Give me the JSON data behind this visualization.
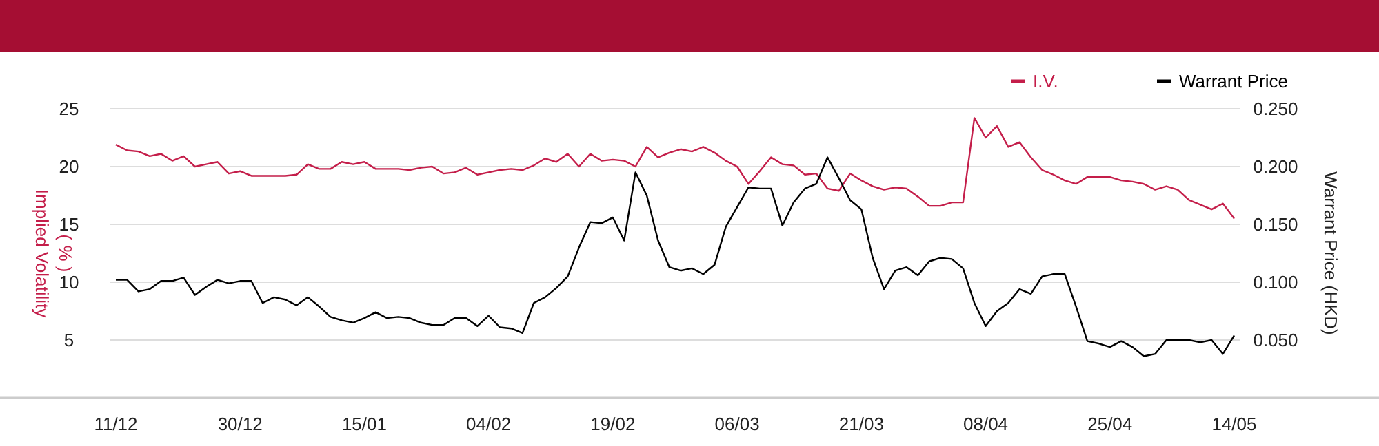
{
  "chart_data": {
    "type": "line",
    "ylabel": "Implied Volatility ( % )",
    "y2label": "Warrant Price (HKD)",
    "categories": [
      "11/12",
      null,
      null,
      null,
      null,
      null,
      null,
      null,
      null,
      null,
      null,
      "30/12",
      null,
      null,
      null,
      null,
      null,
      null,
      null,
      null,
      null,
      null,
      "15/01",
      null,
      null,
      null,
      null,
      null,
      null,
      null,
      null,
      null,
      null,
      "04/02",
      null,
      null,
      null,
      null,
      null,
      null,
      null,
      null,
      null,
      null,
      "19/02",
      null,
      null,
      null,
      null,
      null,
      null,
      null,
      null,
      null,
      null,
      "06/03",
      null,
      null,
      null,
      null,
      null,
      null,
      null,
      null,
      null,
      null,
      "21/03",
      null,
      null,
      null,
      null,
      null,
      null,
      null,
      null,
      null,
      null,
      "08/04",
      null,
      null,
      null,
      null,
      null,
      null,
      null,
      null,
      null,
      null,
      "25/04",
      null,
      null,
      null,
      null,
      null,
      null,
      null,
      null,
      null,
      null,
      "14/05"
    ],
    "series": [
      {
        "name": "I.V.",
        "color": "#c41e4a",
        "values": [
          21.9,
          21.4,
          21.3,
          20.9,
          21.1,
          20.5,
          20.9,
          20.0,
          20.2,
          20.4,
          19.4,
          19.6,
          19.2,
          19.2,
          19.2,
          19.2,
          19.3,
          20.2,
          19.8,
          19.8,
          20.4,
          20.2,
          20.4,
          19.8,
          19.8,
          19.8,
          19.7,
          19.9,
          20.0,
          19.4,
          19.5,
          19.9,
          19.3,
          19.5,
          19.7,
          19.8,
          19.7,
          20.1,
          20.7,
          20.4,
          21.1,
          20.0,
          21.1,
          20.5,
          20.6,
          20.5,
          20.0,
          21.7,
          20.8,
          21.2,
          21.5,
          21.3,
          21.7,
          21.2,
          20.5,
          20.0,
          18.5,
          19.6,
          20.8,
          20.2,
          20.1,
          19.3,
          19.4,
          18.1,
          17.9,
          19.4,
          18.8,
          18.3,
          18.0,
          18.2,
          18.1,
          17.4,
          16.6,
          16.6,
          16.9,
          16.9,
          24.2,
          22.5,
          23.5,
          21.7,
          22.1,
          20.8,
          19.7,
          19.3,
          18.8,
          18.5,
          19.1,
          19.1,
          19.1,
          18.8,
          18.7,
          18.5,
          18.0,
          18.3,
          18.0,
          17.1,
          16.7,
          16.3,
          16.8,
          15.5
        ]
      },
      {
        "name": "Warrant Price",
        "color": "#000000",
        "axis": "y2",
        "values": [
          0.102,
          0.102,
          0.092,
          0.094,
          0.101,
          0.101,
          0.104,
          0.089,
          0.096,
          0.102,
          0.099,
          0.101,
          0.101,
          0.082,
          0.087,
          0.085,
          0.08,
          0.087,
          0.079,
          0.07,
          0.067,
          0.065,
          0.069,
          0.074,
          0.069,
          0.07,
          0.069,
          0.065,
          0.063,
          0.063,
          0.069,
          0.069,
          0.062,
          0.071,
          0.061,
          0.06,
          0.056,
          0.082,
          0.087,
          0.095,
          0.105,
          0.13,
          0.152,
          0.151,
          0.156,
          0.136,
          0.195,
          0.175,
          0.136,
          0.113,
          0.11,
          0.112,
          0.107,
          0.115,
          0.148,
          0.165,
          0.182,
          0.181,
          0.181,
          0.149,
          0.169,
          0.181,
          0.185,
          0.208,
          0.19,
          0.171,
          0.163,
          0.121,
          0.094,
          0.11,
          0.113,
          0.106,
          0.118,
          0.121,
          0.12,
          0.112,
          0.082,
          0.062,
          0.075,
          0.082,
          0.094,
          0.09,
          0.105,
          0.107,
          0.107,
          0.079,
          0.049,
          0.047,
          0.044,
          0.049,
          0.044,
          0.036,
          0.038,
          0.05,
          0.05,
          0.05,
          0.048,
          0.05,
          0.038,
          0.054
        ]
      }
    ],
    "ylim": [
      0,
      25
    ],
    "yticks": [
      5,
      10,
      15,
      20,
      25
    ],
    "y2lim": [
      0,
      0.25
    ],
    "y2ticks": [
      {
        "value": 0.05,
        "label": "0.050"
      },
      {
        "value": 0.1,
        "label": "0.100"
      },
      {
        "value": 0.15,
        "label": "0.150"
      },
      {
        "value": 0.2,
        "label": "0.200"
      },
      {
        "value": 0.25,
        "label": "0.250"
      }
    ],
    "grid": "y",
    "legend": "top right",
    "marker": "none",
    "line_style": "solid"
  }
}
